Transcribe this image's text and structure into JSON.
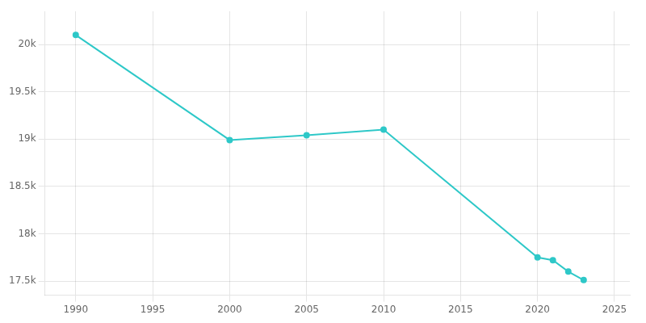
{
  "chart_data": {
    "type": "line",
    "x": [
      1990,
      2000,
      2005,
      2010,
      2020,
      2021,
      2022,
      2023
    ],
    "values": [
      20100,
      18990,
      19040,
      19100,
      17750,
      17720,
      17600,
      17510
    ],
    "color": "#2ec8c8",
    "marker": "circle",
    "xlim": [
      1988,
      2026
    ],
    "xticks": [
      1990,
      1995,
      2000,
      2005,
      2010,
      2015,
      2020,
      2025
    ],
    "ylim": [
      17350,
      20350
    ],
    "yticks": [
      {
        "value": 17500,
        "label": "17.5k"
      },
      {
        "value": 18000,
        "label": "18k"
      },
      {
        "value": 18500,
        "label": "18.5k"
      },
      {
        "value": 19000,
        "label": "19k"
      },
      {
        "value": 19500,
        "label": "19.5k"
      },
      {
        "value": 20000,
        "label": "20k"
      }
    ],
    "grid": true
  }
}
